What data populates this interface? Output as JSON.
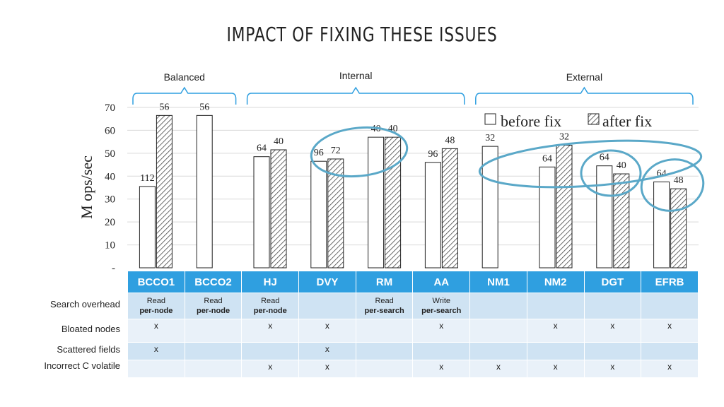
{
  "slide": {
    "title": "IMPACT OF FIXING THESE ISSUES"
  },
  "colors": {
    "table_header": "#2f9fe0",
    "table_row_dark": "#cfe3f3",
    "table_row_light": "#e9f1f9",
    "brace": "#2f9fe0",
    "ellipse": "#5aa8c8"
  },
  "chart_data": {
    "type": "bar",
    "ylabel": "M ops/sec",
    "ylim": [
      0,
      70
    ],
    "yticks": [
      "70",
      "60",
      "50",
      "40",
      "30",
      "20",
      "10",
      "-"
    ],
    "categories": [
      "BCCO1",
      "BCCO2",
      "HJ",
      "DVY",
      "RM",
      "AA",
      "NM1",
      "NM2",
      "DGT",
      "EFRB"
    ],
    "series": [
      {
        "name": "before fix",
        "values": [
          35.5,
          66.5,
          48.5,
          46.5,
          57,
          46,
          53,
          44,
          44.5,
          37.5
        ],
        "labels": [
          "112",
          "56",
          "64",
          "96",
          "40",
          "96",
          "32",
          "64",
          "64",
          "64"
        ]
      },
      {
        "name": "after fix",
        "values": [
          66.5,
          null,
          51.5,
          47.5,
          57,
          52,
          null,
          53.5,
          41,
          34.5
        ],
        "labels": [
          "56",
          "",
          "40",
          "72",
          "40",
          "48",
          "",
          "32",
          "40",
          "48"
        ]
      }
    ],
    "groups": [
      {
        "label": "Balanced",
        "from": 0,
        "to": 1
      },
      {
        "label": "Internal",
        "from": 2,
        "to": 5
      },
      {
        "label": "External",
        "from": 6,
        "to": 9
      }
    ],
    "legend": "top-right",
    "grid": true
  },
  "table": {
    "rows": [
      {
        "label": "Search overhead",
        "cells": [
          [
            "Read",
            "per-node"
          ],
          [
            "Read",
            "per-node"
          ],
          [
            "Read",
            "per-node"
          ],
          [
            "",
            ""
          ],
          [
            "Read",
            "per-search"
          ],
          [
            "Write",
            "per-search"
          ],
          [
            "",
            ""
          ],
          [
            "",
            ""
          ],
          [
            "",
            ""
          ],
          [
            "",
            ""
          ]
        ]
      },
      {
        "label": "Bloated nodes",
        "cells": [
          "x",
          "",
          "x",
          "x",
          "",
          "x",
          "",
          "x",
          "x",
          "x"
        ]
      },
      {
        "label": "Scattered fields",
        "cells": [
          "x",
          "",
          "",
          "x",
          "",
          "",
          "",
          "",
          "",
          ""
        ]
      },
      {
        "label": "Incorrect C volatile",
        "cells": [
          "",
          "",
          "x",
          "x",
          "",
          "x",
          "x",
          "x",
          "x",
          "x"
        ]
      }
    ]
  }
}
